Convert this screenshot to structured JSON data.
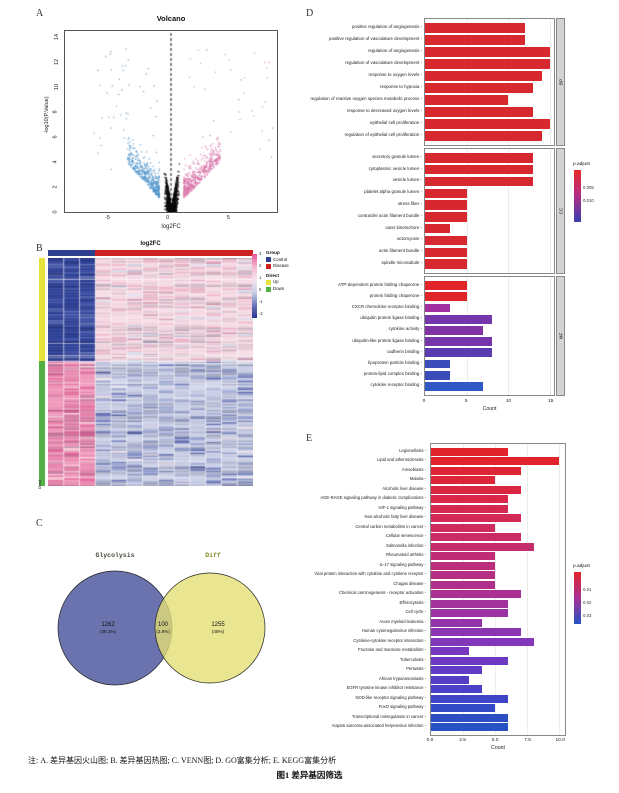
{
  "figure": {
    "panels": {
      "a": "A",
      "b": "B",
      "c": "C",
      "d": "D",
      "e": "E"
    },
    "caption_note": "注: A. 差异基因火山图; B. 差异基因热图; C. VENN图; D. GO富集分析; E. KEGG富集分析",
    "caption_title": "图1  差异基因筛选"
  },
  "chart_data": [
    {
      "id": "volcano",
      "type": "scatter",
      "title": "Volcano",
      "xlabel": "log2FC",
      "ylabel": "-log10(P.Value)",
      "xlim": [
        -8.7,
        8.7
      ],
      "ylim": [
        0,
        14.5
      ],
      "xticks": [
        -5,
        0,
        5
      ],
      "yticks": [
        0,
        2,
        4,
        6,
        8,
        10,
        12,
        14
      ],
      "vline_x": 0,
      "series": [
        {
          "name": "down-regulated",
          "color": "#4a90c8",
          "n": 430,
          "x_range": [
            -4.6,
            -1
          ],
          "y_range": [
            1,
            9.5
          ]
        },
        {
          "name": "not-significant",
          "color": "#0d0d0d",
          "n": 2600,
          "x_range": [
            -1.15,
            1.15
          ],
          "y_range": [
            0,
            6.4
          ]
        },
        {
          "name": "up-regulated",
          "color": "#d874a9",
          "n": 540,
          "x_range": [
            1,
            4.8
          ],
          "y_range": [
            1,
            9.5
          ]
        },
        {
          "name": "outliers",
          "color": "mixed",
          "n": 85,
          "x_range": [
            -7,
            8.4
          ],
          "y_range": [
            3,
            13.4
          ]
        }
      ]
    },
    {
      "id": "heatmap",
      "type": "heatmap",
      "title": "log2FC",
      "grid": {
        "rows": 150,
        "cols": 13,
        "control_cols": 3,
        "up_row_fraction": 0.45
      },
      "block_colors": {
        "up_control": "#30439b",
        "up_disease": "#f5d8e2",
        "down_control": "#ee8fb5",
        "down_disease": "#c8cde5"
      },
      "col_groups": [
        {
          "name": "Control",
          "color": "#2d3f8f",
          "fraction": 0.23
        },
        {
          "name": "Disease",
          "color": "#cc2222",
          "fraction": 0.77
        }
      ],
      "row_groups": [
        {
          "name": "Up",
          "color": "#e6e33c",
          "fraction": 0.45
        },
        {
          "name": "Down",
          "color": "#53b045",
          "fraction": 0.55
        }
      ],
      "legend": {
        "group_title": "Group",
        "group_items": [
          {
            "label": "Control",
            "color": "#2d3f8f"
          },
          {
            "label": "Disease",
            "color": "#cc2222"
          }
        ],
        "direct_title": "Direct",
        "direct_items": [
          {
            "label": "Up",
            "color": "#e6e33c"
          },
          {
            "label": "Down",
            "color": "#53b045"
          }
        ],
        "scale_ticks": [
          "3",
          "2",
          "1",
          "0",
          "-1",
          "-2"
        ],
        "scale_colors": [
          "#e8539b",
          "#f2b9d1",
          "#f6e3ea",
          "#c9cfe6",
          "#6a76ba",
          "#27378c"
        ]
      }
    },
    {
      "id": "venn",
      "type": "venn",
      "sets": [
        {
          "label": "Glycolysis",
          "label_color": "#474b3f",
          "fill": "#5b64a5",
          "count": "1262",
          "pct": "(48.2%)"
        },
        {
          "label": "Diff",
          "label_color": "#8a8a2e",
          "fill": "#e3df76",
          "count": "1255",
          "pct": "(48%)"
        }
      ],
      "intersection": {
        "count": "100",
        "pct": "(3.8%)"
      }
    },
    {
      "id": "go-enrichment",
      "type": "bar",
      "orientation": "horizontal",
      "xlabel": "Count",
      "xticks": [
        0,
        5,
        10,
        15
      ],
      "xlim": [
        0,
        15.5
      ],
      "legend": {
        "title": "p.adjust",
        "ticks": [
          "0.005",
          "0.010"
        ],
        "gradient": [
          "#e8282d",
          "#b02d86",
          "#3a3fae"
        ]
      },
      "facets": [
        {
          "strip": "BP",
          "bars": [
            {
              "label": "positive regulation of angiogenesis",
              "value": 12,
              "color": "#d7282f"
            },
            {
              "label": "positive regulation of vasculature development",
              "value": 12,
              "color": "#d7282f"
            },
            {
              "label": "regulation of angiogenesis",
              "value": 15,
              "color": "#d7282f"
            },
            {
              "label": "regulation of vasculature development",
              "value": 15,
              "color": "#d7282f"
            },
            {
              "label": "response to oxygen levels",
              "value": 14,
              "color": "#d7282f"
            },
            {
              "label": "response to hypoxia",
              "value": 13,
              "color": "#d7282f"
            },
            {
              "label": "regulation of reactive oxygen species metabolic process",
              "value": 10,
              "color": "#d7282f"
            },
            {
              "label": "response to decreased oxygen levels",
              "value": 13,
              "color": "#d7282f"
            },
            {
              "label": "epithelial cell proliferation",
              "value": 15,
              "color": "#d7282f"
            },
            {
              "label": "regulation of epithelial cell proliferation",
              "value": 14,
              "color": "#d7282f"
            }
          ]
        },
        {
          "strip": "CC",
          "bars": [
            {
              "label": "secretory granule lumen",
              "value": 13,
              "color": "#d7282f"
            },
            {
              "label": "cytoplasmic vesicle lumen",
              "value": 13,
              "color": "#d7282f"
            },
            {
              "label": "vesicle lumen",
              "value": 13,
              "color": "#d7282f"
            },
            {
              "label": "platelet alpha granule lumen",
              "value": 5,
              "color": "#d7282f"
            },
            {
              "label": "stress fiber",
              "value": 5,
              "color": "#d7282f"
            },
            {
              "label": "contractile actin filament bundle",
              "value": 5,
              "color": "#d7282f"
            },
            {
              "label": "outer kinetochore",
              "value": 3,
              "color": "#d7282f"
            },
            {
              "label": "actomyosin",
              "value": 5,
              "color": "#d7282f"
            },
            {
              "label": "actin filament bundle",
              "value": 5,
              "color": "#d7282f"
            },
            {
              "label": "spindle microtubule",
              "value": 5,
              "color": "#d7282f"
            }
          ]
        },
        {
          "strip": "MF",
          "bars": [
            {
              "label": "ATP-dependent protein folding chaperone",
              "value": 5,
              "color": "#e02529"
            },
            {
              "label": "protein folding chaperone",
              "value": 5,
              "color": "#e02529"
            },
            {
              "label": "CXCR chemokine receptor binding",
              "value": 3,
              "color": "#a030a0"
            },
            {
              "label": "ubiquitin protein ligase binding",
              "value": 8,
              "color": "#7636ab"
            },
            {
              "label": "cytokine activity",
              "value": 7,
              "color": "#8133a6"
            },
            {
              "label": "ubiquitin-like protein ligase binding",
              "value": 8,
              "color": "#7636ab"
            },
            {
              "label": "cadherin binding",
              "value": 8,
              "color": "#5b3cb0"
            },
            {
              "label": "lipoprotein particle binding",
              "value": 3,
              "color": "#3a4cba"
            },
            {
              "label": "protein-lipid complex binding",
              "value": 3,
              "color": "#3a4cba"
            },
            {
              "label": "cytokine receptor binding",
              "value": 7,
              "color": "#2f58c4"
            }
          ]
        }
      ]
    },
    {
      "id": "kegg-enrichment",
      "type": "bar",
      "orientation": "horizontal",
      "xlabel": "Count",
      "xticks": [
        "0.0",
        "2.5",
        "5.0",
        "7.5",
        "10.0"
      ],
      "xlim": [
        0,
        10.45
      ],
      "legend": {
        "title": "p.adjust",
        "ticks": [
          "0.01",
          "0.02",
          "0.03"
        ],
        "gradient": [
          "#e1232b",
          "#a93194",
          "#2652c4"
        ]
      },
      "bars": [
        {
          "label": "Legionellosis",
          "value": 6,
          "color": "#e1232b"
        },
        {
          "label": "Lipid and atherosclerosis",
          "value": 10,
          "color": "#e1232b"
        },
        {
          "label": "Amoebiasis",
          "value": 7,
          "color": "#df2433"
        },
        {
          "label": "Malaria",
          "value": 5,
          "color": "#dd253a"
        },
        {
          "label": "Alcoholic liver disease",
          "value": 7,
          "color": "#db2641"
        },
        {
          "label": "AGE-RAGE signaling pathway in diabetic complications",
          "value": 6,
          "color": "#d82748"
        },
        {
          "label": "HIF-1 signaling pathway",
          "value": 6,
          "color": "#d5284f"
        },
        {
          "label": "Non-alcoholic fatty liver disease",
          "value": 7,
          "color": "#d22956"
        },
        {
          "label": "Central carbon metabolism in cancer",
          "value": 5,
          "color": "#ce2a5d"
        },
        {
          "label": "Cellular senescence",
          "value": 7,
          "color": "#ca2b64"
        },
        {
          "label": "Salmonella infection",
          "value": 8,
          "color": "#c52c6c"
        },
        {
          "label": "Rheumatoid arthritis",
          "value": 5,
          "color": "#c02d74"
        },
        {
          "label": "IL-17 signaling pathway",
          "value": 5,
          "color": "#bb2e7c"
        },
        {
          "label": "Viral protein interaction with cytokine and cytokine receptor",
          "value": 5,
          "color": "#b52f84"
        },
        {
          "label": "Chagas disease",
          "value": 5,
          "color": "#af308c"
        },
        {
          "label": "Chemical carcinogenesis - receptor activation",
          "value": 7,
          "color": "#a93194"
        },
        {
          "label": "Efferocytosis",
          "value": 6,
          "color": "#a2329c"
        },
        {
          "label": "Cell cycle",
          "value": 6,
          "color": "#9b33a4"
        },
        {
          "label": "Acute myeloid leukemia",
          "value": 4,
          "color": "#9334ab"
        },
        {
          "label": "Human cytomegalovirus infection",
          "value": 7,
          "color": "#8b35b2"
        },
        {
          "label": "Cytokine-cytokine receptor interaction",
          "value": 8,
          "color": "#8236b8"
        },
        {
          "label": "Fructose and mannose metabolism",
          "value": 3,
          "color": "#7838bd"
        },
        {
          "label": "Tuberculosis",
          "value": 6,
          "color": "#6d3ac1"
        },
        {
          "label": "Pertussis",
          "value": 4,
          "color": "#613cc4"
        },
        {
          "label": "African trypanosomiasis",
          "value": 3,
          "color": "#553ec6"
        },
        {
          "label": "EGFR tyrosine kinase inhibitor resistance",
          "value": 4,
          "color": "#4941c7"
        },
        {
          "label": "NOD-like receptor signaling pathway",
          "value": 6,
          "color": "#3e45c7"
        },
        {
          "label": "FoxO signaling pathway",
          "value": 5,
          "color": "#3449c6"
        },
        {
          "label": "Transcriptional misregulation in cancer",
          "value": 6,
          "color": "#2c4ec5"
        },
        {
          "label": "Kaposi sarcoma-associated herpesvirus infection",
          "value": 6,
          "color": "#2652c4"
        }
      ]
    }
  ]
}
